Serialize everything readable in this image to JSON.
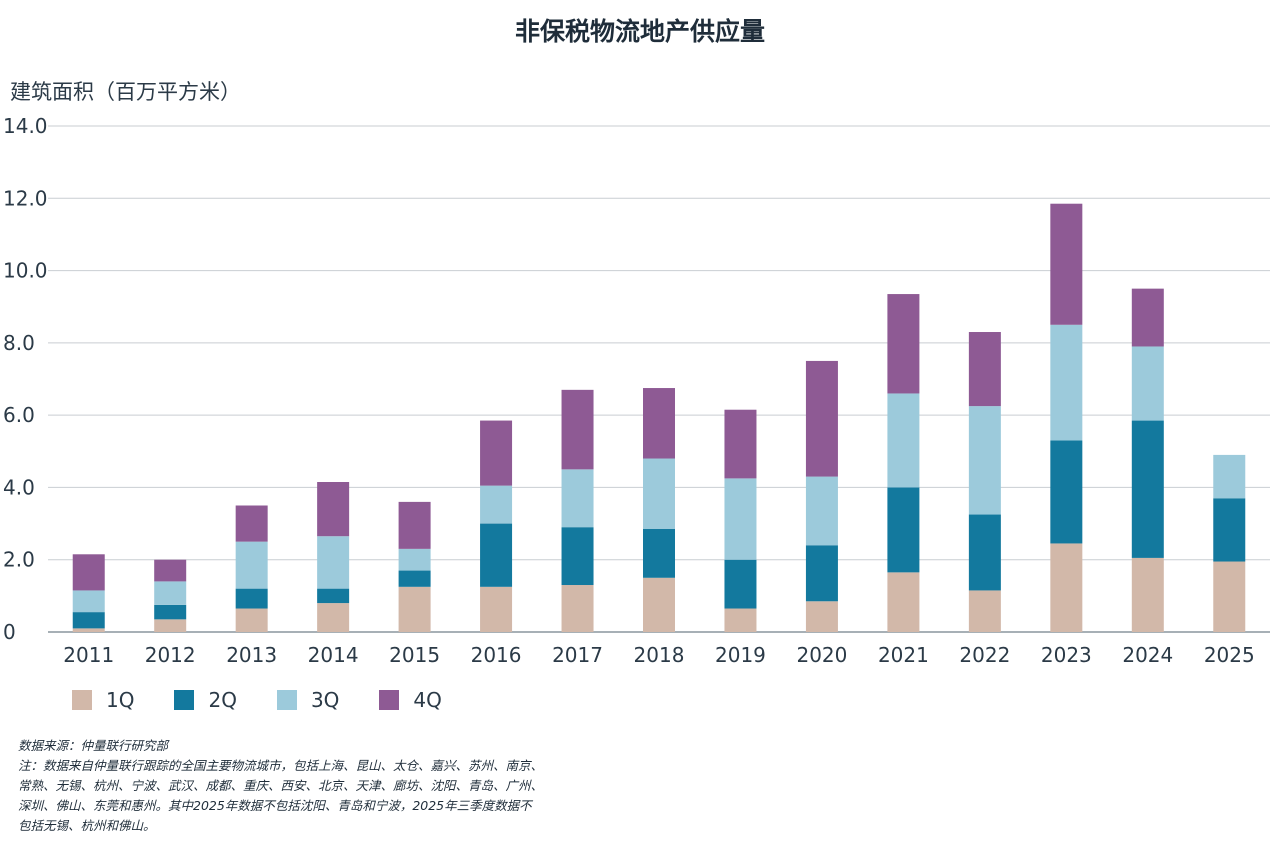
{
  "chart_data": {
    "type": "bar",
    "stacked": true,
    "title": "非保税物流地产供应量",
    "ylabel": "建筑面积（百万平方米）",
    "xlabel": "",
    "ylim": [
      0,
      14
    ],
    "yticks": [
      "0",
      "2.0",
      "4.0",
      "6.0",
      "8.0",
      "10.0",
      "12.0",
      "14.0"
    ],
    "ytick_values": [
      0,
      2,
      4,
      6,
      8,
      10,
      12,
      14
    ],
    "grid": true,
    "legend_position": "bottom-left",
    "categories": [
      "2011",
      "2012",
      "2013",
      "2014",
      "2015",
      "2016",
      "2017",
      "2018",
      "2019",
      "2020",
      "2021",
      "2022",
      "2023",
      "2024",
      "2025"
    ],
    "series": [
      {
        "name": "1Q",
        "color": "#d2b8a9",
        "values": [
          0.1,
          0.35,
          0.65,
          0.8,
          1.25,
          1.25,
          1.3,
          1.5,
          0.65,
          0.85,
          1.65,
          1.15,
          2.45,
          2.05,
          1.95
        ]
      },
      {
        "name": "2Q",
        "color": "#13799e",
        "values": [
          0.45,
          0.4,
          0.55,
          0.4,
          0.45,
          1.75,
          1.6,
          1.35,
          1.35,
          1.55,
          2.35,
          2.1,
          2.85,
          3.8,
          1.75
        ]
      },
      {
        "name": "3Q",
        "color": "#9ccadb",
        "values": [
          0.6,
          0.65,
          1.3,
          1.45,
          0.6,
          1.05,
          1.6,
          1.95,
          2.25,
          1.9,
          2.6,
          3.0,
          3.2,
          2.05,
          1.2
        ]
      },
      {
        "name": "4Q",
        "color": "#8e5a94",
        "values": [
          1.0,
          0.6,
          1.0,
          1.5,
          1.3,
          1.8,
          2.2,
          1.95,
          1.9,
          3.2,
          2.75,
          2.05,
          3.35,
          1.6,
          0
        ]
      }
    ]
  },
  "notes": {
    "source": "数据来源：仲量联行研究部",
    "lines": [
      "注：数据来自仲量联行跟踪的全国主要物流城市，包括上海、昆山、太仓、嘉兴、苏州、南京、",
      "常熟、无锡、杭州、宁波、武汉、成都、重庆、西安、北京、天津、廊坊、沈阳、青岛、广州、",
      "深圳、佛山、东莞和惠州。其中2025年数据不包括沈阳、青岛和宁波，2025年三季度数据不",
      "包括无锡、杭州和佛山。"
    ]
  }
}
